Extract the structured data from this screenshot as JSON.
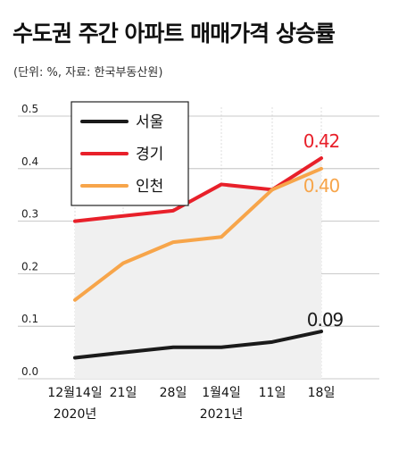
{
  "chart_data": {
    "type": "line",
    "title": "수도권 주간 아파트 매매가격 상승률",
    "subtitle": "(단위: %, 자료: 한국부동산원)",
    "categories": [
      "12월14일",
      "21일",
      "28일",
      "1월4일",
      "11일",
      "18일"
    ],
    "year_labels": [
      {
        "category": 0,
        "text": "2020년"
      },
      {
        "category": 3,
        "text": "2021년"
      }
    ],
    "y_ticks": [
      "0.0",
      "0.1",
      "0.2",
      "0.3",
      "0.4",
      "0.5"
    ],
    "ylim": [
      0,
      0.5
    ],
    "grid": true,
    "legend": "top-left",
    "series": [
      {
        "name": "서울",
        "color": "#1a1a1a",
        "values": [
          0.04,
          0.05,
          0.06,
          0.06,
          0.07,
          0.09
        ],
        "end_label": "0.09"
      },
      {
        "name": "경기",
        "color": "#e8202a",
        "values": [
          0.3,
          0.31,
          0.32,
          0.37,
          0.36,
          0.42
        ],
        "end_label": "0.42"
      },
      {
        "name": "인천",
        "color": "#f7a54a",
        "values": [
          0.15,
          0.22,
          0.26,
          0.27,
          0.36,
          0.4
        ],
        "end_label": "0.40"
      }
    ],
    "area_fill_color": "#f0f0f0"
  }
}
